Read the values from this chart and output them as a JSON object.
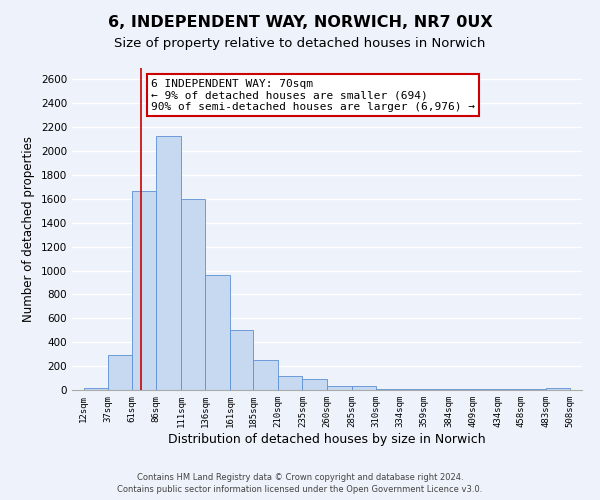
{
  "title": "6, INDEPENDENT WAY, NORWICH, NR7 0UX",
  "subtitle": "Size of property relative to detached houses in Norwich",
  "xlabel": "Distribution of detached houses by size in Norwich",
  "ylabel": "Number of detached properties",
  "bar_left_edges": [
    12,
    37,
    61,
    86,
    111,
    136,
    161,
    185,
    210,
    235,
    260,
    285,
    310,
    334,
    359,
    384,
    409,
    434,
    458,
    483
  ],
  "bar_widths": [
    25,
    24,
    25,
    25,
    25,
    25,
    24,
    25,
    25,
    25,
    25,
    25,
    24,
    25,
    25,
    25,
    25,
    24,
    25,
    25
  ],
  "bar_heights": [
    20,
    295,
    1670,
    2130,
    1600,
    960,
    505,
    255,
    120,
    95,
    30,
    30,
    5,
    5,
    5,
    5,
    5,
    5,
    5,
    20
  ],
  "tick_labels": [
    "12sqm",
    "37sqm",
    "61sqm",
    "86sqm",
    "111sqm",
    "136sqm",
    "161sqm",
    "185sqm",
    "210sqm",
    "235sqm",
    "260sqm",
    "285sqm",
    "310sqm",
    "334sqm",
    "359sqm",
    "384sqm",
    "409sqm",
    "434sqm",
    "458sqm",
    "483sqm",
    "508sqm"
  ],
  "bar_color": "#c6d9f0",
  "bar_edge_color": "#5b8fd4",
  "vline_x": 70,
  "vline_color": "#cc0000",
  "ylim": [
    0,
    2700
  ],
  "yticks": [
    0,
    200,
    400,
    600,
    800,
    1000,
    1200,
    1400,
    1600,
    1800,
    2000,
    2200,
    2400,
    2600
  ],
  "annotation_title": "6 INDEPENDENT WAY: 70sqm",
  "annotation_line1": "← 9% of detached houses are smaller (694)",
  "annotation_line2": "90% of semi-detached houses are larger (6,976) →",
  "annotation_box_color": "#cc0000",
  "footer1": "Contains HM Land Registry data © Crown copyright and database right 2024.",
  "footer2": "Contains public sector information licensed under the Open Government Licence v3.0.",
  "bg_color": "#eef2fa",
  "grid_color": "#ffffff",
  "title_fontsize": 11.5,
  "subtitle_fontsize": 9.5,
  "xlabel_fontsize": 9,
  "ylabel_fontsize": 8.5
}
